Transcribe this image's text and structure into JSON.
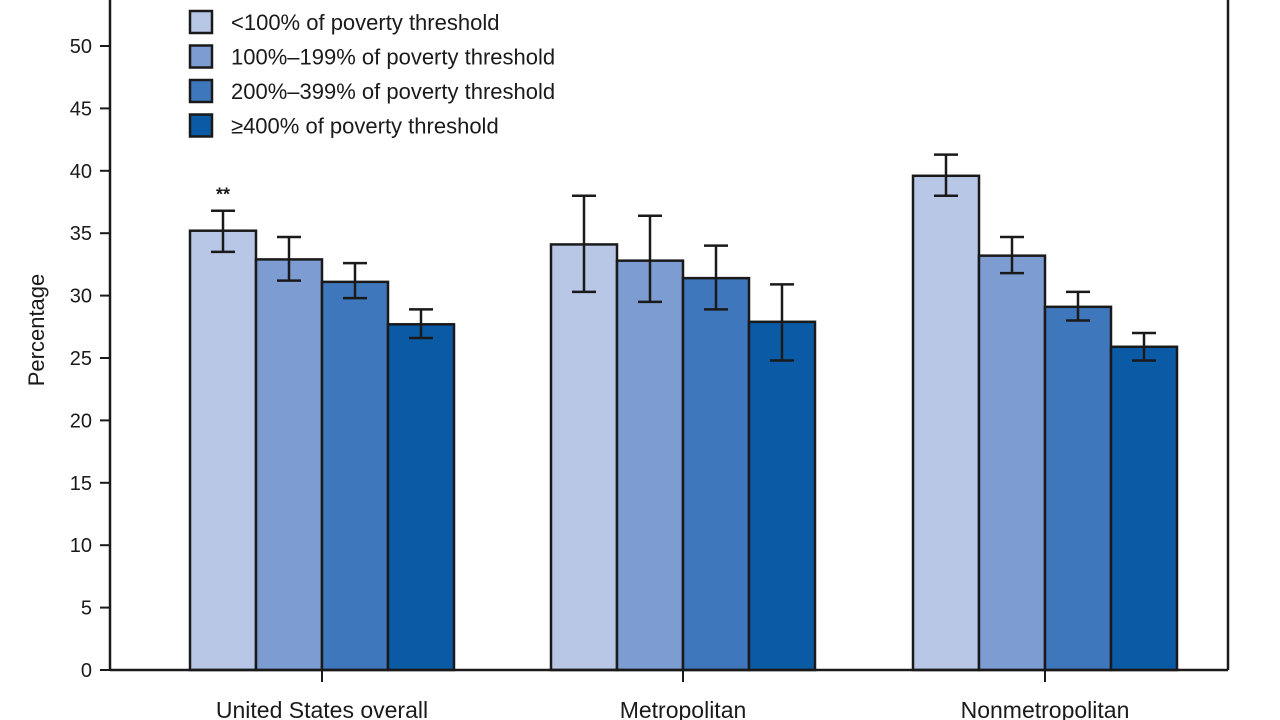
{
  "chart_data": {
    "type": "bar",
    "ylabel": "Percentage",
    "ylim": [
      0,
      55
    ],
    "yticks": [
      0,
      5,
      10,
      15,
      20,
      25,
      30,
      35,
      40,
      45,
      50
    ],
    "categories": [
      "United States overall",
      "Metropolitan",
      "Nonmetropolitan"
    ],
    "series": [
      {
        "name": "<100% of poverty threshold",
        "color": "#b8c7e6",
        "values": [
          35.2,
          34.1,
          39.6
        ],
        "error_low": [
          33.5,
          30.3,
          38.0
        ],
        "error_high": [
          36.8,
          38.0,
          41.3
        ]
      },
      {
        "name": "100%–199% of poverty threshold",
        "color": "#7d9dd2",
        "values": [
          32.9,
          32.8,
          33.2
        ],
        "error_low": [
          31.2,
          29.5,
          31.8
        ],
        "error_high": [
          34.7,
          36.4,
          34.7
        ]
      },
      {
        "name": "200%–399% of poverty threshold",
        "color": "#3f77bd",
        "values": [
          31.1,
          31.4,
          29.1
        ],
        "error_low": [
          29.8,
          28.9,
          28.0
        ],
        "error_high": [
          32.6,
          34.0,
          30.3
        ]
      },
      {
        "name": "≥400% of poverty threshold",
        "color": "#0a5aa6",
        "values": [
          27.7,
          27.9,
          25.9
        ],
        "error_low": [
          26.6,
          24.8,
          24.8
        ],
        "error_high": [
          28.9,
          30.9,
          27.0
        ]
      }
    ],
    "annotations": [
      {
        "category": "United States overall",
        "series": "<100% of poverty threshold",
        "text": "**"
      }
    ],
    "grid": false,
    "legend_position": "top-left"
  }
}
